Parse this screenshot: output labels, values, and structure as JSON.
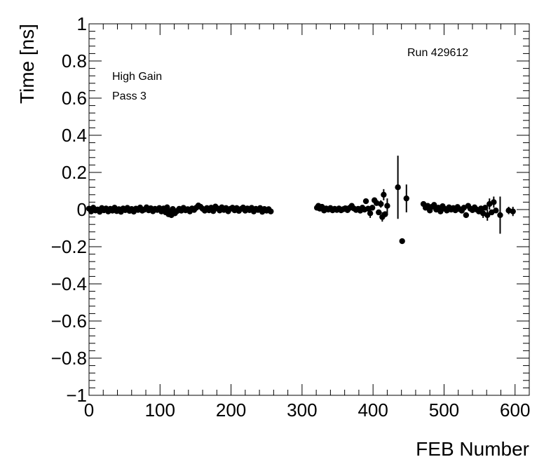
{
  "chart_data": {
    "type": "scatter",
    "xlabel": "FEB Number",
    "ylabel": "Time [ns]",
    "xlim": [
      0,
      620
    ],
    "ylim": [
      -1,
      1
    ],
    "x_ticks": [
      0,
      100,
      200,
      300,
      400,
      500,
      600
    ],
    "y_ticks": [
      -1,
      -0.8,
      -0.6,
      -0.4,
      -0.2,
      0,
      0.2,
      0.4,
      0.6,
      0.8,
      1
    ],
    "x_tick_labels": [
      "0",
      "100",
      "200",
      "300",
      "400",
      "500",
      "600"
    ],
    "y_tick_labels": [
      "−1",
      "−0.8",
      "−0.6",
      "−0.4",
      "−0.2",
      "0",
      "0.2",
      "0.4",
      "0.6",
      "0.8",
      "1"
    ],
    "annotations": [
      "High Gain",
      "Pass 3",
      "Run 429612"
    ],
    "marker_color": "#000000",
    "points": [
      {
        "x": 0,
        "y": 0.005
      },
      {
        "x": 3,
        "y": -0.01
      },
      {
        "x": 6,
        "y": 0.01
      },
      {
        "x": 9,
        "y": -0.005
      },
      {
        "x": 12,
        "y": 0.0
      },
      {
        "x": 15,
        "y": -0.012
      },
      {
        "x": 18,
        "y": 0.008
      },
      {
        "x": 21,
        "y": -0.004
      },
      {
        "x": 24,
        "y": 0.006
      },
      {
        "x": 27,
        "y": -0.01
      },
      {
        "x": 30,
        "y": 0.004
      },
      {
        "x": 33,
        "y": -0.006
      },
      {
        "x": 36,
        "y": 0.01
      },
      {
        "x": 39,
        "y": -0.008
      },
      {
        "x": 42,
        "y": 0.002
      },
      {
        "x": 45,
        "y": -0.012
      },
      {
        "x": 48,
        "y": 0.006
      },
      {
        "x": 51,
        "y": -0.003
      },
      {
        "x": 54,
        "y": 0.009
      },
      {
        "x": 57,
        "y": -0.007
      },
      {
        "x": 60,
        "y": 0.003
      },
      {
        "x": 63,
        "y": -0.011
      },
      {
        "x": 66,
        "y": 0.005
      },
      {
        "x": 69,
        "y": -0.002
      },
      {
        "x": 72,
        "y": 0.011
      },
      {
        "x": 75,
        "y": -0.006
      },
      {
        "x": 78,
        "y": 0.0
      },
      {
        "x": 81,
        "y": 0.012
      },
      {
        "x": 84,
        "y": -0.004
      },
      {
        "x": 87,
        "y": 0.007
      },
      {
        "x": 90,
        "y": -0.009
      },
      {
        "x": 93,
        "y": 0.004
      },
      {
        "x": 96,
        "y": -0.002
      },
      {
        "x": 99,
        "y": 0.008
      },
      {
        "x": 102,
        "y": -0.01
      },
      {
        "x": 105,
        "y": 0.006
      },
      {
        "x": 108,
        "y": -0.015,
        "err": 0.012
      },
      {
        "x": 110,
        "y": 0.012,
        "err": 0.015
      },
      {
        "x": 112,
        "y": -0.025,
        "err": 0.012
      },
      {
        "x": 114,
        "y": -0.01
      },
      {
        "x": 116,
        "y": -0.03
      },
      {
        "x": 118,
        "y": 0.003
      },
      {
        "x": 121,
        "y": -0.02
      },
      {
        "x": 124,
        "y": -0.008
      },
      {
        "x": 127,
        "y": 0.004
      },
      {
        "x": 130,
        "y": -0.006
      },
      {
        "x": 133,
        "y": 0.009
      },
      {
        "x": 136,
        "y": -0.004
      },
      {
        "x": 139,
        "y": 0.002
      },
      {
        "x": 142,
        "y": -0.01
      },
      {
        "x": 145,
        "y": 0.006
      },
      {
        "x": 148,
        "y": -0.002
      },
      {
        "x": 151,
        "y": 0.01
      },
      {
        "x": 154,
        "y": 0.022
      },
      {
        "x": 157,
        "y": 0.015
      },
      {
        "x": 160,
        "y": 0.004
      },
      {
        "x": 163,
        "y": -0.006
      },
      {
        "x": 166,
        "y": 0.008
      },
      {
        "x": 169,
        "y": -0.004
      },
      {
        "x": 172,
        "y": 0.01
      },
      {
        "x": 175,
        "y": -0.008
      },
      {
        "x": 178,
        "y": 0.016
      },
      {
        "x": 181,
        "y": 0.006
      },
      {
        "x": 184,
        "y": -0.005
      },
      {
        "x": 187,
        "y": 0.012
      },
      {
        "x": 190,
        "y": -0.002
      },
      {
        "x": 193,
        "y": 0.008
      },
      {
        "x": 196,
        "y": -0.009
      },
      {
        "x": 199,
        "y": 0.004
      },
      {
        "x": 202,
        "y": 0.01
      },
      {
        "x": 205,
        "y": -0.004
      },
      {
        "x": 208,
        "y": 0.008
      },
      {
        "x": 211,
        "y": -0.007
      },
      {
        "x": 214,
        "y": 0.003
      },
      {
        "x": 217,
        "y": 0.011
      },
      {
        "x": 220,
        "y": -0.006
      },
      {
        "x": 223,
        "y": 0.006
      },
      {
        "x": 226,
        "y": -0.003
      },
      {
        "x": 229,
        "y": 0.009
      },
      {
        "x": 232,
        "y": -0.01
      },
      {
        "x": 235,
        "y": 0.004
      },
      {
        "x": 238,
        "y": -0.002
      },
      {
        "x": 241,
        "y": 0.008
      },
      {
        "x": 244,
        "y": -0.012
      },
      {
        "x": 247,
        "y": 0.003
      },
      {
        "x": 250,
        "y": -0.006
      },
      {
        "x": 253,
        "y": 0.002
      },
      {
        "x": 256,
        "y": -0.01
      },
      {
        "x": 321,
        "y": 0.01
      },
      {
        "x": 323,
        "y": 0.02
      },
      {
        "x": 325,
        "y": 0.005
      },
      {
        "x": 328,
        "y": 0.015
      },
      {
        "x": 331,
        "y": -0.005
      },
      {
        "x": 334,
        "y": 0.006
      },
      {
        "x": 337,
        "y": 0.0
      },
      {
        "x": 340,
        "y": 0.008
      },
      {
        "x": 343,
        "y": -0.004
      },
      {
        "x": 346,
        "y": 0.004
      },
      {
        "x": 349,
        "y": -0.002
      },
      {
        "x": 352,
        "y": 0.006
      },
      {
        "x": 355,
        "y": -0.004
      },
      {
        "x": 358,
        "y": 0.002
      },
      {
        "x": 361,
        "y": 0.007
      },
      {
        "x": 364,
        "y": -0.003
      },
      {
        "x": 367,
        "y": 0.009
      },
      {
        "x": 370,
        "y": 0.02
      },
      {
        "x": 373,
        "y": 0.006
      },
      {
        "x": 376,
        "y": -0.002
      },
      {
        "x": 379,
        "y": 0.004
      },
      {
        "x": 382,
        "y": -0.006
      },
      {
        "x": 385,
        "y": 0.01
      },
      {
        "x": 388,
        "y": 0.0
      },
      {
        "x": 390,
        "y": 0.045
      },
      {
        "x": 393,
        "y": 0.005
      },
      {
        "x": 396,
        "y": -0.02,
        "err": 0.025
      },
      {
        "x": 399,
        "y": 0.01
      },
      {
        "x": 402,
        "y": 0.05,
        "err": 0.015
      },
      {
        "x": 405,
        "y": 0.035
      },
      {
        "x": 408,
        "y": -0.015
      },
      {
        "x": 411,
        "y": 0.03,
        "err": 0.02
      },
      {
        "x": 413,
        "y": -0.04,
        "err": 0.025
      },
      {
        "x": 415,
        "y": 0.08,
        "err": 0.03
      },
      {
        "x": 417,
        "y": -0.025
      },
      {
        "x": 420,
        "y": 0.02,
        "err": 0.04
      },
      {
        "x": 435,
        "y": 0.12,
        "err": 0.17
      },
      {
        "x": 441,
        "y": -0.17
      },
      {
        "x": 447,
        "y": 0.06,
        "err": 0.075
      },
      {
        "x": 471,
        "y": 0.03
      },
      {
        "x": 474,
        "y": 0.01
      },
      {
        "x": 477,
        "y": 0.02
      },
      {
        "x": 480,
        "y": -0.005
      },
      {
        "x": 483,
        "y": 0.015
      },
      {
        "x": 486,
        "y": 0.025
      },
      {
        "x": 489,
        "y": 0.0
      },
      {
        "x": 492,
        "y": 0.01
      },
      {
        "x": 495,
        "y": -0.01
      },
      {
        "x": 498,
        "y": 0.018
      },
      {
        "x": 501,
        "y": 0.004
      },
      {
        "x": 504,
        "y": -0.005
      },
      {
        "x": 507,
        "y": 0.012
      },
      {
        "x": 510,
        "y": 0.0
      },
      {
        "x": 513,
        "y": 0.008
      },
      {
        "x": 516,
        "y": -0.004
      },
      {
        "x": 519,
        "y": 0.014
      },
      {
        "x": 522,
        "y": 0.002
      },
      {
        "x": 525,
        "y": -0.006
      },
      {
        "x": 528,
        "y": 0.01
      },
      {
        "x": 531,
        "y": -0.03
      },
      {
        "x": 534,
        "y": 0.02
      },
      {
        "x": 537,
        "y": 0.005
      },
      {
        "x": 540,
        "y": -0.003
      },
      {
        "x": 543,
        "y": 0.012
      },
      {
        "x": 546,
        "y": 0.0
      },
      {
        "x": 549,
        "y": -0.01
      },
      {
        "x": 552,
        "y": 0.006
      },
      {
        "x": 555,
        "y": -0.02,
        "err": 0.025
      },
      {
        "x": 558,
        "y": 0.01
      },
      {
        "x": 561,
        "y": -0.03,
        "err": 0.03
      },
      {
        "x": 564,
        "y": 0.03,
        "err": 0.03
      },
      {
        "x": 567,
        "y": -0.015
      },
      {
        "x": 570,
        "y": 0.04,
        "err": 0.03
      },
      {
        "x": 573,
        "y": -0.005
      },
      {
        "x": 579,
        "y": -0.03,
        "err": 0.1
      },
      {
        "x": 591,
        "y": -0.005,
        "err": 0.02
      },
      {
        "x": 597,
        "y": -0.01,
        "err": 0.025
      }
    ]
  }
}
